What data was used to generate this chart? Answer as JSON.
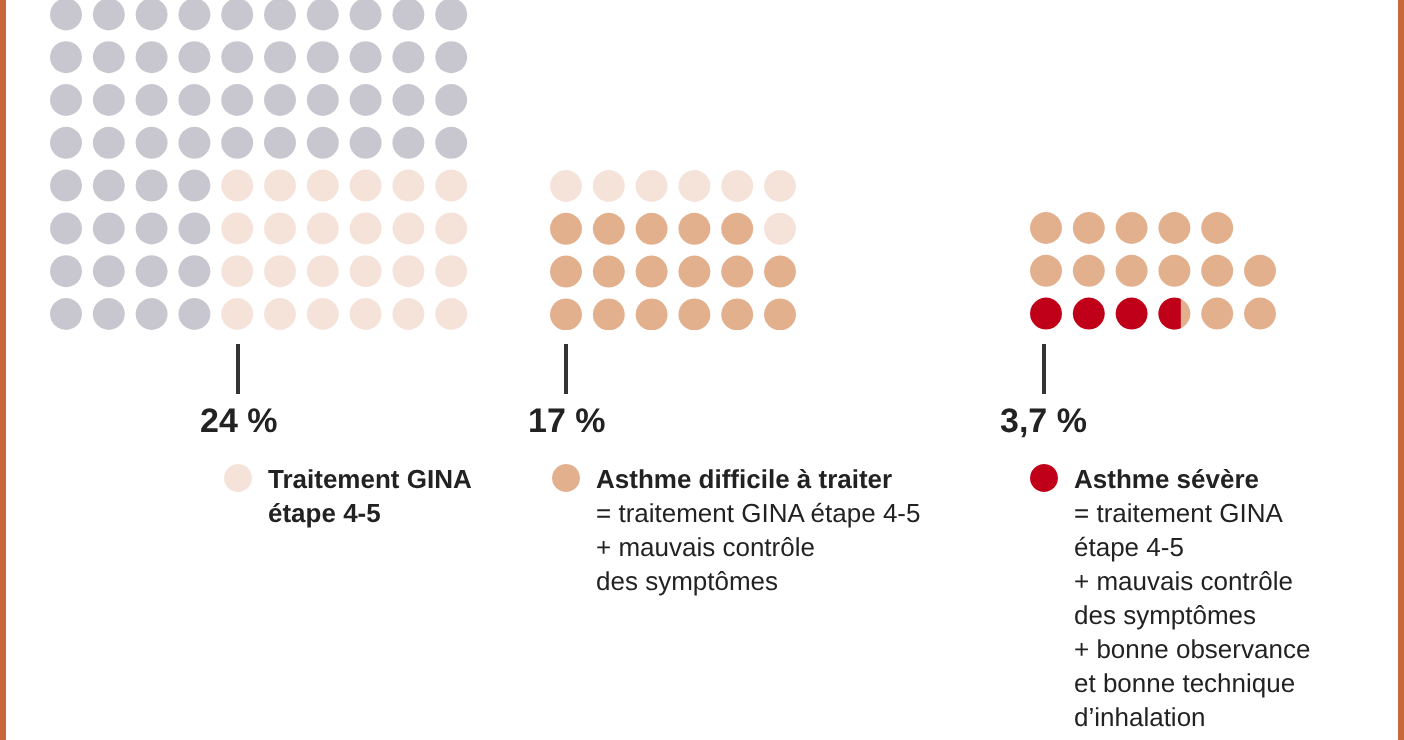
{
  "chart_data": {
    "type": "other",
    "color": "#c8c7cf",
    "categories": [
      "Traitement GINA\nétape 4-5",
      "Asthme difficile à traiter",
      "Asthme sévère"
    ],
    "values": [
      24,
      17,
      3.7
    ],
    "value_labels": [
      "24 %",
      "17 %",
      "3,7 %"
    ],
    "colors": [
      "#f5e3da",
      "#e3b08e",
      "#c00018"
    ],
    "annotations": [
      "= traitement GINA étape 4-5\n+ mauvais contrôle\ndes symptômes",
      "= traitement GINA\nétape 4-5\n+ mauvais contrôle\ndes symptômes\n+ bonne observance\net bonne technique\nd’inhalation"
    ]
  }
}
